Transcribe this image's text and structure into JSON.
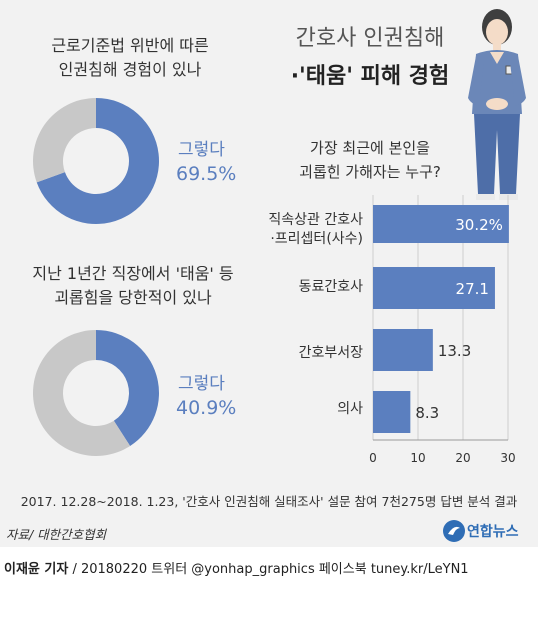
{
  "title": {
    "line1": "간호사 인권침해",
    "line2": "·'태움' 피해 경험"
  },
  "donut1": {
    "question_line1": "근로기준법 위반에 따른",
    "question_line2": "인권침해 경험이 있나",
    "label": "그렇다",
    "value_text": "69.5%"
  },
  "donut2": {
    "question_line1": "지난 1년간 직장에서 '태움' 등",
    "question_line2": "괴롭힘을 당한적이 있나",
    "label": "그렇다",
    "value_text": "40.9%"
  },
  "bar_question": {
    "line1": "가장 최근에 본인을",
    "line2": "괴롭힌 가해자는 누구?"
  },
  "chart_data": [
    {
      "type": "pie",
      "categories": [
        "그렇다",
        ""
      ],
      "values": [
        69.5,
        30.5
      ],
      "colors": [
        "#5b7fbf",
        "#c8c8c8"
      ]
    },
    {
      "type": "pie",
      "categories": [
        "그렇다",
        ""
      ],
      "values": [
        40.9,
        59.1
      ],
      "colors": [
        "#5b7fbf",
        "#c8c8c8"
      ]
    },
    {
      "type": "bar",
      "orientation": "horizontal",
      "categories": [
        "직속상관 간호사 ·프리셉터(사수)",
        "동료간호사",
        "간호부서장",
        "의사"
      ],
      "category_lines": [
        [
          "직속상관 간호사",
          "·프리셉터(사수)"
        ],
        [
          "동료간호사"
        ],
        [
          "간호부서장"
        ],
        [
          "의사"
        ]
      ],
      "values": [
        30.2,
        27.1,
        13.3,
        8.3
      ],
      "value_labels": [
        "30.2%",
        "27.1",
        "13.3",
        "8.3"
      ],
      "xlim": [
        0,
        30
      ],
      "xticks": [
        "0",
        "10",
        "20",
        "30"
      ],
      "grid": true,
      "colors": {
        "bar": "#5b7fbf",
        "label_inside": "#ffffff",
        "label_outside": "#333333"
      }
    }
  ],
  "footnote": "2017. 12.28~2018. 1.23, '간호사 인권침해 실태조사' 설문 참여 7천275명 답변 분석 결과",
  "source": "자료/ 대한간호협회",
  "logo_text": "연합뉴스",
  "credit": {
    "reporter": "이재윤 기자",
    "rest": " / 20180220   트위터 @yonhap_graphics  페이스북 tuney.kr/LeYN1"
  },
  "colors": {
    "accent": "#5b7fbf",
    "gray": "#c8c8c8",
    "background": "#f2f2f2"
  }
}
